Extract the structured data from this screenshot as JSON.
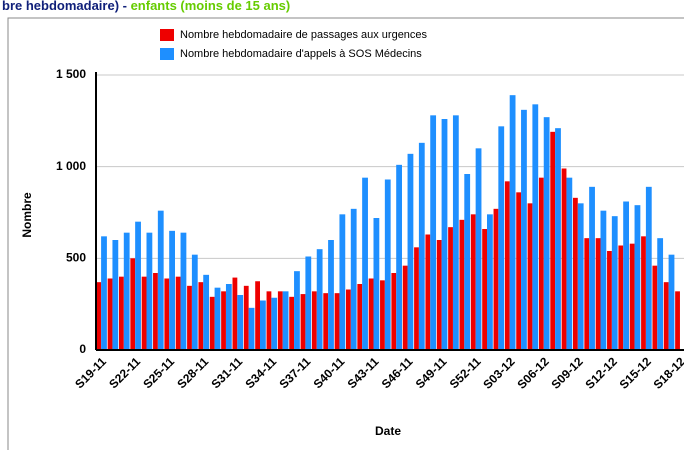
{
  "chart_data": {
    "type": "bar",
    "title": "bre hebdomadaire) - ",
    "title_highlight": "enfants (moins de 15 ans)",
    "x_label": "Date",
    "y_label": "Nombre",
    "categories": [
      "S19-11",
      null,
      null,
      "S22-11",
      null,
      null,
      "S25-11",
      null,
      null,
      "S28-11",
      null,
      null,
      "S31-11",
      null,
      null,
      "S34-11",
      null,
      null,
      "S37-11",
      null,
      null,
      "S40-11",
      null,
      null,
      "S43-11",
      null,
      null,
      "S46-11",
      null,
      null,
      "S49-11",
      null,
      null,
      "S52-11",
      null,
      null,
      "S03-12",
      null,
      null,
      "S06-12",
      null,
      null,
      "S09-12",
      null,
      null,
      "S12-12",
      null,
      null,
      "S15-12",
      null,
      null,
      "S18-12"
    ],
    "series": [
      {
        "name": "Nombre hebdomadaire de passages aux urgences",
        "color": "#ee0000",
        "values": [
          370,
          390,
          400,
          500,
          400,
          420,
          390,
          400,
          350,
          370,
          290,
          320,
          395,
          350,
          375,
          320,
          320,
          290,
          305,
          320,
          310,
          310,
          330,
          360,
          390,
          380,
          420,
          460,
          560,
          630,
          600,
          670,
          710,
          740,
          660,
          770,
          920,
          860,
          800,
          940,
          1190,
          990,
          830,
          610,
          610,
          540,
          570,
          580,
          620,
          460,
          370,
          320
        ]
      },
      {
        "name": "Nombre hebdomadaire d'appels à SOS Médecins",
        "color": "#1e8fff",
        "values": [
          620,
          600,
          640,
          700,
          640,
          760,
          650,
          640,
          520,
          410,
          340,
          360,
          300,
          230,
          270,
          285,
          320,
          430,
          510,
          550,
          600,
          740,
          770,
          940,
          720,
          930,
          1010,
          1070,
          1130,
          1280,
          1260,
          1280,
          960,
          1100,
          740,
          1220,
          1390,
          1310,
          1340,
          1270,
          1210,
          940,
          800,
          890,
          760,
          730,
          810,
          790,
          890,
          610,
          520,
          null
        ]
      }
    ],
    "ylim": [
      0,
      1500
    ],
    "yticks": [
      0,
      500,
      {
        "value": 1000,
        "label": "1 000"
      },
      {
        "value": 1500,
        "label": "1 500"
      }
    ],
    "grid": true
  }
}
